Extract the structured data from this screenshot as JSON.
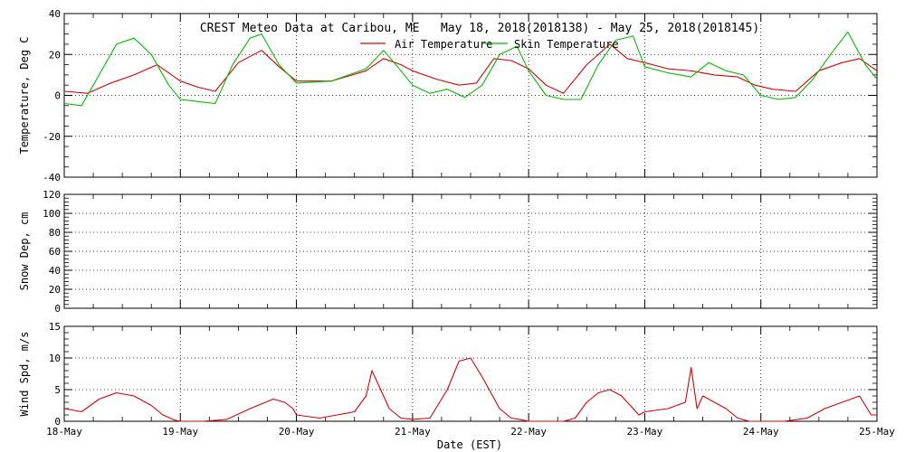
{
  "chart_data": {
    "title": "CREST Meteo Data at Caribou, ME   May 18, 2018(2018138) - May 25, 2018(2018145)",
    "xlabel": "Date (EST)",
    "x_ticks": [
      "18-May",
      "19-May",
      "20-May",
      "21-May",
      "22-May",
      "23-May",
      "24-May",
      "25-May"
    ],
    "xlim_days": [
      0,
      7
    ],
    "colors": {
      "air": "#e00000",
      "skin": "#00c000",
      "wind": "#e00000",
      "grid": "#000000"
    },
    "panels": [
      {
        "type": "line",
        "ylabel": "Temperature, Deg C",
        "ylim": [
          -40,
          40
        ],
        "y_ticks": [
          -40,
          -20,
          0,
          20,
          40
        ],
        "legend_position": "top-center",
        "series": [
          {
            "name": "Air Temperature",
            "color": "#e00000",
            "x": [
              0.0,
              0.2,
              0.4,
              0.6,
              0.8,
              1.0,
              1.15,
              1.3,
              1.5,
              1.7,
              1.85,
              2.0,
              2.3,
              2.6,
              2.75,
              2.9,
              3.0,
              3.2,
              3.4,
              3.55,
              3.7,
              3.85,
              4.0,
              4.15,
              4.3,
              4.5,
              4.7,
              4.85,
              5.0,
              5.2,
              5.4,
              5.6,
              5.8,
              5.95,
              6.1,
              6.3,
              6.5,
              6.7,
              6.85,
              7.0
            ],
            "values": [
              2,
              1,
              6,
              10,
              15,
              7,
              4,
              2,
              16,
              22,
              14,
              7,
              7,
              12,
              18,
              15,
              12,
              8,
              5,
              6,
              18,
              17,
              13,
              5,
              1,
              15,
              25,
              18,
              16,
              13,
              12,
              10,
              9,
              5,
              3,
              2,
              12,
              16,
              18,
              12
            ]
          },
          {
            "name": "Skin Temperature",
            "color": "#00c000",
            "x": [
              0.0,
              0.15,
              0.3,
              0.45,
              0.6,
              0.75,
              0.9,
              1.0,
              1.15,
              1.3,
              1.45,
              1.6,
              1.7,
              1.85,
              2.0,
              2.3,
              2.6,
              2.75,
              2.9,
              3.0,
              3.15,
              3.3,
              3.45,
              3.6,
              3.75,
              3.9,
              4.0,
              4.15,
              4.3,
              4.45,
              4.6,
              4.75,
              4.9,
              5.0,
              5.2,
              5.4,
              5.55,
              5.7,
              5.85,
              6.0,
              6.15,
              6.3,
              6.45,
              6.6,
              6.75,
              6.9,
              7.0
            ],
            "values": [
              -4,
              -5,
              10,
              25,
              28,
              20,
              5,
              -2,
              -3,
              -4,
              15,
              28,
              30,
              15,
              6,
              7,
              13,
              22,
              12,
              5,
              1,
              3,
              -1,
              5,
              20,
              24,
              12,
              0,
              -2,
              -2,
              15,
              27,
              29,
              14,
              11,
              9,
              16,
              12,
              10,
              0,
              -2,
              -1,
              8,
              20,
              31,
              15,
              8
            ]
          }
        ]
      },
      {
        "type": "line",
        "ylabel": "Snow Dep, cm",
        "ylim": [
          0,
          120
        ],
        "y_ticks": [
          0,
          20,
          40,
          60,
          80,
          100,
          120
        ],
        "series": []
      },
      {
        "type": "line",
        "ylabel": "Wind Spd, m/s",
        "ylim": [
          0,
          15
        ],
        "y_ticks": [
          0,
          5,
          10,
          15
        ],
        "series": [
          {
            "name": "Wind Speed",
            "color": "#e00000",
            "x": [
              0.0,
              0.15,
              0.3,
              0.45,
              0.6,
              0.75,
              0.85,
              0.95,
              1.0,
              1.2,
              1.4,
              1.6,
              1.8,
              1.9,
              1.97,
              2.0,
              2.2,
              2.35,
              2.5,
              2.6,
              2.65,
              2.7,
              2.8,
              2.9,
              3.0,
              3.15,
              3.3,
              3.4,
              3.5,
              3.6,
              3.75,
              3.85,
              3.95,
              4.0,
              4.2,
              4.3,
              4.4,
              4.5,
              4.6,
              4.7,
              4.8,
              4.9,
              4.95,
              5.0,
              5.2,
              5.35,
              5.4,
              5.45,
              5.5,
              5.6,
              5.7,
              5.8,
              5.9,
              6.0,
              6.2,
              6.4,
              6.55,
              6.7,
              6.85,
              6.95,
              7.0
            ],
            "values": [
              2,
              1.5,
              3.5,
              4.5,
              4,
              2.5,
              1,
              0.2,
              0,
              0,
              0.3,
              2,
              3.5,
              3,
              2,
              1,
              0.5,
              1,
              1.5,
              4,
              8,
              6,
              2,
              0.5,
              0.3,
              0.5,
              5,
              9.5,
              10,
              7,
              2,
              0.5,
              0.2,
              0,
              0,
              0,
              0.5,
              3,
              4.5,
              5,
              4,
              2,
              1,
              1.5,
              2,
              3,
              8.5,
              2,
              4,
              3,
              2,
              0.5,
              0,
              0,
              0,
              0.5,
              2,
              3,
              4,
              1,
              1
            ]
          }
        ]
      }
    ]
  }
}
